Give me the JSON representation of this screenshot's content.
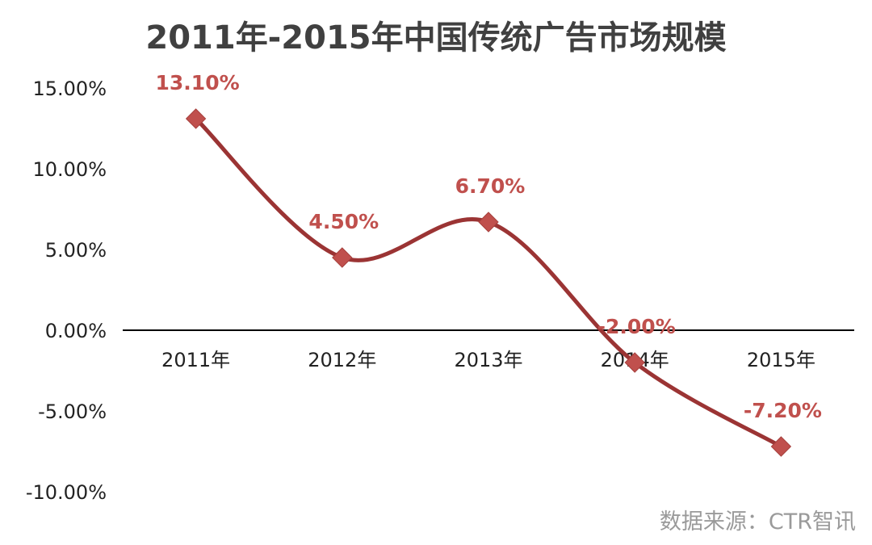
{
  "chart_data": {
    "type": "line",
    "title": "2011年-2015年中国传统广告市场规模",
    "categories": [
      "2011年",
      "2012年",
      "2013年",
      "2014年",
      "2015年"
    ],
    "series": [
      {
        "values": [
          13.1,
          4.5,
          6.7,
          -2.0,
          -7.2
        ]
      }
    ],
    "data_labels": [
      "13.10%",
      "4.50%",
      "6.70%",
      "-2.00%",
      "-7.20%"
    ],
    "y_ticks": [
      15,
      10,
      5,
      0,
      -5,
      -10
    ],
    "y_tick_labels": [
      "15.00%",
      "10.00%",
      "5.00%",
      "0.00%",
      "-5.00%",
      "-10.00%"
    ],
    "ylim": [
      -10,
      15
    ],
    "xlabel": "",
    "ylabel": "",
    "grid": false,
    "smooth": true,
    "line_color": "#9b3434",
    "marker_color": "#c0504d",
    "label_color": "#c0504d",
    "marker": "diamond"
  },
  "source": "数据来源：CTR智讯"
}
